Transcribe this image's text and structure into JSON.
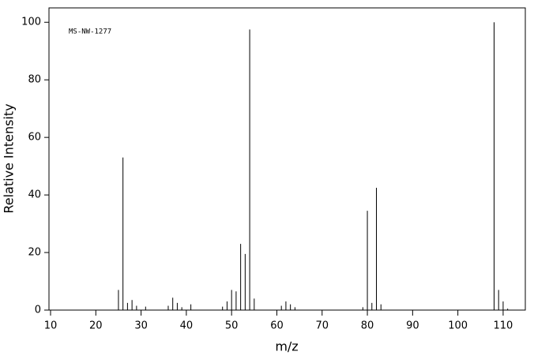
{
  "chart_data": {
    "type": "spectrum",
    "annotation": "MS-NW-1277",
    "x_label": "m/z",
    "y_label": "Relative Intensity",
    "x": [
      25,
      26,
      27,
      28,
      29,
      31,
      36,
      37,
      38,
      39,
      41,
      48,
      49,
      50,
      51,
      52,
      53,
      54,
      55,
      61,
      62,
      63,
      64,
      79,
      80,
      81,
      82,
      83,
      108,
      109,
      110,
      111
    ],
    "values": [
      7,
      53,
      2.5,
      3.5,
      1.5,
      1.2,
      1.5,
      4.3,
      2.5,
      1,
      2,
      1.2,
      3,
      7,
      6.5,
      23,
      19.5,
      97.5,
      4,
      1.5,
      3,
      2,
      1,
      1,
      34.5,
      2.5,
      42.5,
      2,
      100,
      7,
      3,
      0.5
    ],
    "color": "#000000",
    "xlim": [
      9.65,
      114.9
    ],
    "ylim": [
      0,
      105
    ],
    "xticks": [
      10,
      20,
      30,
      40,
      50,
      60,
      70,
      80,
      90,
      100,
      110
    ],
    "yticks": [
      0,
      20,
      40,
      60,
      80,
      100
    ]
  }
}
